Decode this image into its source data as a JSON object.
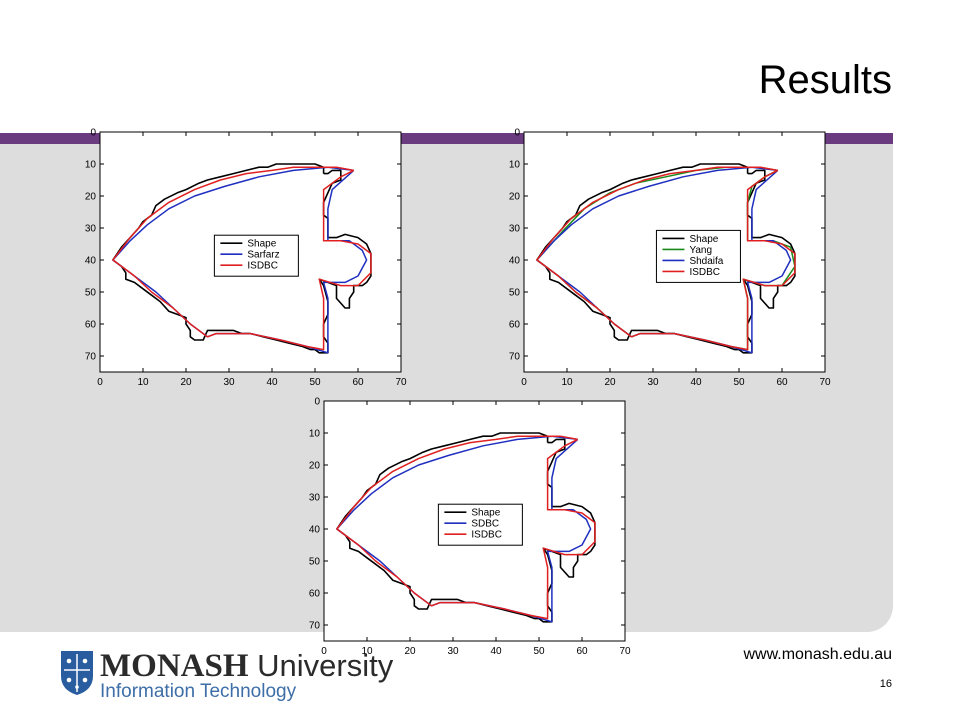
{
  "slide": {
    "title": "Results",
    "url": "www.monash.edu.au",
    "page_number": "16",
    "accent_color": "#6b3b80",
    "panel_color": "#dddddd"
  },
  "logo": {
    "name_bold": "MONASH",
    "name_light": " University",
    "subtitle": "Information Technology",
    "subtitle_color": "#3d6ea8",
    "crest_color": "#2a5d9f"
  },
  "chart_data": [
    {
      "type": "line",
      "xlim": [
        0,
        70
      ],
      "ylim": [
        0,
        75
      ],
      "y_reversed": true,
      "xticks": [
        0,
        10,
        20,
        30,
        40,
        50,
        60,
        70
      ],
      "yticks": [
        0,
        10,
        20,
        30,
        40,
        50,
        60,
        70
      ],
      "legend_placement": "center",
      "series": [
        {
          "name": "Shape",
          "color": "#000000",
          "role": "shape"
        },
        {
          "name": "Sarfarz",
          "color": "#1f2fbf",
          "role": "inner"
        },
        {
          "name": "ISDBC",
          "color": "#e02020",
          "role": "close"
        }
      ]
    },
    {
      "type": "line",
      "xlim": [
        0,
        70
      ],
      "ylim": [
        0,
        75
      ],
      "y_reversed": true,
      "xticks": [
        0,
        10,
        20,
        30,
        40,
        50,
        60,
        70
      ],
      "yticks": [
        0,
        10,
        20,
        30,
        40,
        50,
        60,
        70
      ],
      "legend_placement": "center-right",
      "series": [
        {
          "name": "Shape",
          "color": "#000000",
          "role": "shape"
        },
        {
          "name": "Yang",
          "color": "#1a8a1a",
          "role": "mid"
        },
        {
          "name": "Shdaifa",
          "color": "#1f2fbf",
          "role": "inner"
        },
        {
          "name": "ISDBC",
          "color": "#e02020",
          "role": "close"
        }
      ]
    },
    {
      "type": "line",
      "xlim": [
        0,
        70
      ],
      "ylim": [
        0,
        75
      ],
      "y_reversed": true,
      "xticks": [
        0,
        10,
        20,
        30,
        40,
        50,
        60,
        70
      ],
      "yticks": [
        0,
        10,
        20,
        30,
        40,
        50,
        60,
        70
      ],
      "legend_placement": "center",
      "series": [
        {
          "name": "Shape",
          "color": "#000000",
          "role": "shape"
        },
        {
          "name": "SDBC",
          "color": "#1f2fbf",
          "role": "inner"
        },
        {
          "name": "ISDBC",
          "color": "#e02020",
          "role": "close"
        }
      ]
    }
  ]
}
